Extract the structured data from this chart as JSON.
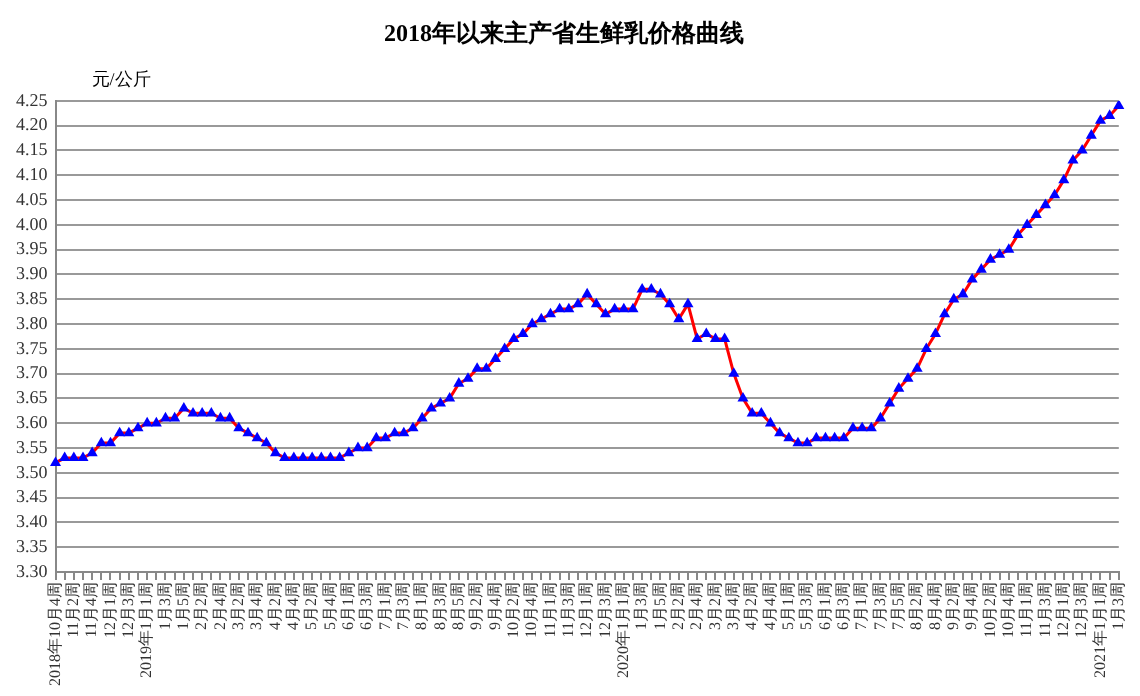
{
  "chart_data": {
    "type": "line",
    "title": "2018年以来主产省生鲜乳价格曲线",
    "ylabel": "元/公斤",
    "categories": [
      "2018年10月4周",
      null,
      "11月2周",
      null,
      "11月4周",
      null,
      "12月1周",
      null,
      "12月3周",
      null,
      "2019年1月1周",
      null,
      "1月3周",
      null,
      "1月5周",
      null,
      "2月2周",
      null,
      "2月4周",
      null,
      "3月2周",
      null,
      "3月4周",
      null,
      "4月2周",
      null,
      "4月4周",
      null,
      "5月2周",
      null,
      "5月4周",
      null,
      "6月1周",
      null,
      "6月3周",
      null,
      "7月1周",
      null,
      "7月3周",
      null,
      "8月1周",
      null,
      "8月3周",
      null,
      "8月5周",
      null,
      "9月2周",
      null,
      "9月4周",
      null,
      "10月2周",
      null,
      "10月4周",
      null,
      "11月1周",
      null,
      "11月3周",
      null,
      "12月1周",
      null,
      "12月3周",
      null,
      "2020年1月1周",
      null,
      "1月3周",
      null,
      "1月5周",
      null,
      "2月2周",
      null,
      "2月4周",
      null,
      "3月2周",
      null,
      "3月4周",
      null,
      "4月2周",
      null,
      "4月4周",
      null,
      "5月1周",
      null,
      "5月3周",
      null,
      "6月1周",
      null,
      "6月3周",
      null,
      "7月1周",
      null,
      "7月3周",
      null,
      "7月5周",
      null,
      "8月2周",
      null,
      "8月4周",
      null,
      "9月2周",
      null,
      "9月4周",
      null,
      "10月2周",
      null,
      "10月4周",
      null,
      "11月1周",
      null,
      "11月3周",
      null,
      "12月1周",
      null,
      "12月3周",
      null,
      "2021年1月1周",
      null,
      "1月3周"
    ],
    "series": [
      {
        "color": "#ff0000",
        "values": [
          3.52,
          3.53,
          3.53,
          3.53,
          3.54,
          3.56,
          3.56,
          3.58,
          3.58,
          3.59,
          3.6,
          3.6,
          3.61,
          3.61,
          3.63,
          3.62,
          3.62,
          3.62,
          3.61,
          3.61,
          3.59,
          3.58,
          3.57,
          3.56,
          3.54,
          3.53,
          3.53,
          3.53,
          3.53,
          3.53,
          3.53,
          3.53,
          3.54,
          3.55,
          3.55,
          3.57,
          3.57,
          3.58,
          3.58,
          3.59,
          3.61,
          3.63,
          3.64,
          3.65,
          3.68,
          3.69,
          3.71,
          3.71,
          3.73,
          3.75,
          3.77,
          3.78,
          3.8,
          3.81,
          3.82,
          3.83,
          3.83,
          3.84,
          3.86,
          3.84,
          3.82,
          3.83,
          3.83,
          3.83,
          3.87,
          3.87,
          3.86,
          3.84,
          3.81,
          3.84,
          3.77,
          3.78,
          3.77,
          3.77,
          3.7,
          3.65,
          3.62,
          3.62,
          3.6,
          3.58,
          3.57,
          3.56,
          3.56,
          3.57,
          3.57,
          3.57,
          3.57,
          3.59,
          3.59,
          3.59,
          3.61,
          3.64,
          3.67,
          3.69,
          3.71,
          3.75,
          3.78,
          3.82,
          3.85,
          3.86,
          3.89,
          3.91,
          3.93,
          3.94,
          3.95,
          3.98,
          4.0,
          4.02,
          4.04,
          4.06,
          4.09,
          4.13,
          4.15,
          4.18,
          4.21,
          4.22,
          4.24
        ],
        "colors": [
          "#0000ff",
          "#0000ff",
          "#0000ff",
          "#0000ff",
          "#0000ff",
          "#0000ff",
          "#0000ff",
          "#0000ff",
          "#0000ff",
          "#0000ff",
          "#0000ff",
          "#0000ff",
          "#0000ff",
          "#0000ff",
          "#0000ff",
          "#0000ff",
          "#0000ff",
          "#0000ff",
          "#0000ff",
          "#0000ff",
          "#0000ff",
          "#0000ff",
          "#0000ff",
          "#0000ff",
          "#0000ff",
          "#0000ff",
          "#0000ff",
          "#0000ff",
          "#0000ff",
          "#0000ff",
          "#0000ff",
          "#0000ff",
          "#0000ff",
          "#0000ff",
          "#0000ff",
          "#0000ff",
          "#0000ff",
          "#0000ff",
          "#0000ff",
          "#0000ff",
          "#0000ff",
          "#0000ff",
          "#0000ff",
          "#0000ff",
          "#0000ff",
          "#0000ff",
          "#0000ff",
          "#0000ff",
          "#0000ff",
          "#0000ff",
          "#0000ff",
          "#0000ff",
          "#0000ff",
          "#0000ff",
          "#0000ff",
          "#0000ff",
          "#0000ff",
          "#0000ff",
          "#0000ff",
          "#0000ff",
          "#0000ff",
          "#0000ff",
          "#0000ff",
          "#0000ff",
          "#0000ff",
          "#0000ff",
          "#0000ff",
          "#0000ff",
          "#0000ff",
          "#0000ff",
          "#0000ff",
          "#0000ff",
          "#0000ff",
          "#0000ff",
          "#0000ff",
          "#0000ff",
          "#0000ff",
          "#0000ff",
          "#0000ff",
          "#0000ff",
          "#0000ff",
          "#0000ff",
          "#0000ff",
          "#0000ff",
          "#0000ff",
          "#0000ff",
          "#0000ff",
          "#0000ff",
          "#0000ff",
          "#0000ff",
          "#0000ff",
          "#0000ff",
          "#0000ff",
          "#0000ff",
          "#0000ff",
          "#0000ff",
          "#0000ff",
          "#0000ff",
          "#0000ff",
          "#0000ff",
          "#0000ff",
          "#0000ff",
          "#0000ff",
          "#0000ff",
          "#0000ff",
          "#0000ff",
          "#0000ff",
          "#0000ff",
          "#0000ff",
          "#0000ff",
          "#0000ff",
          "#0000ff",
          "#0000ff",
          "#0000ff",
          "#0000ff",
          "#0000ff",
          "#0000ff"
        ]
      }
    ],
    "ylim": [
      3.3,
      4.25
    ],
    "yticks": [
      {
        "value": 3.3,
        "label": "3.30"
      },
      3.35,
      {
        "value": 3.4,
        "label": "3.40"
      },
      3.45,
      {
        "value": 3.5,
        "label": "3.50"
      },
      3.55,
      {
        "value": 3.6,
        "label": "3.60"
      },
      3.65,
      {
        "value": 3.7,
        "label": "3.70"
      },
      3.75,
      {
        "value": 3.8,
        "label": "3.80"
      },
      3.85,
      {
        "value": 3.9,
        "label": "3.90"
      },
      3.95,
      {
        "value": 4.0,
        "label": "4.00"
      },
      4.05,
      {
        "value": 4.1,
        "label": "4.10"
      },
      4.15,
      {
        "value": 4.2,
        "label": "4.20"
      },
      4.25
    ],
    "grid": "y",
    "legend": false,
    "marker": "triangle",
    "line_style": "solid"
  }
}
